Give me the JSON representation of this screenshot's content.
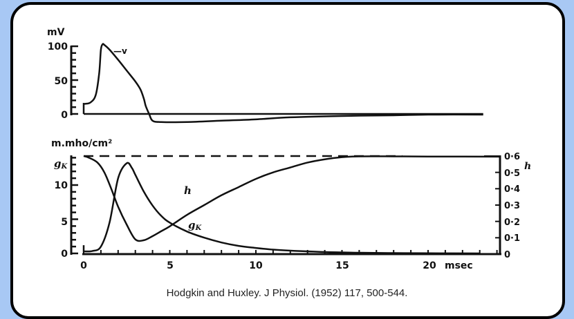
{
  "colors": {
    "background": "#a8c8f4",
    "frame_fill": "#ffffff",
    "frame_border": "#000000",
    "ink": "#111111",
    "caption": "#222222"
  },
  "caption": "Hodgkin and Huxley. J Physiol. (1952) 117, 500-544.",
  "chart_data": [
    {
      "type": "line",
      "title": "",
      "ylabel": "mV",
      "xlabel": "",
      "ylim": [
        0,
        100
      ],
      "xlim": [
        0,
        23.5
      ],
      "yticks": [
        0,
        50,
        100
      ],
      "grid": false,
      "annotations": [
        {
          "text": "—v",
          "x": 2.0,
          "y": 92
        }
      ],
      "series": [
        {
          "name": "v",
          "x": [
            0,
            0.1,
            0.4,
            0.7,
            0.9,
            1.0,
            1.1,
            1.2,
            1.5,
            2.0,
            2.5,
            3.0,
            3.3,
            3.5,
            3.6,
            3.8,
            4.0,
            4.5,
            6,
            8,
            10,
            12,
            15,
            18,
            20,
            23.2
          ],
          "y": [
            15,
            15,
            17,
            28,
            60,
            95,
            103,
            102,
            95,
            80,
            64,
            48,
            36,
            22,
            12,
            0,
            -10,
            -12,
            -12,
            -10,
            -8,
            -5,
            -3,
            -2,
            -1,
            -1
          ]
        },
        {
          "name": "baseline",
          "x": [
            0,
            23.2
          ],
          "y": [
            0,
            0
          ]
        }
      ]
    },
    {
      "type": "line",
      "title": "",
      "ylabel": "m.mho/cm²",
      "ylabel_left_series": "gK",
      "ylabel_right": "h",
      "xlabel": "msec",
      "xlim": [
        0,
        24.2
      ],
      "ylim": [
        0,
        14.5
      ],
      "ylim_right": [
        0,
        0.6
      ],
      "xticks": [
        0,
        5,
        10,
        15,
        20
      ],
      "yticks": [
        0,
        5,
        10
      ],
      "yticks_right": [
        0,
        0.1,
        0.2,
        0.3,
        0.4,
        0.5,
        0.6
      ],
      "yticks_right_labels": [
        "0",
        "0·1",
        "0·2",
        "0·3",
        "0·4",
        "0·5",
        "0·6"
      ],
      "grid": false,
      "annotations": [
        {
          "text": "h",
          "x": 6.0,
          "y_right": 0.38
        },
        {
          "text": "gK",
          "x": 6.1,
          "y": 4.2
        }
      ],
      "series": [
        {
          "name": "gK",
          "axis": "left",
          "x": [
            0,
            0.5,
            1.0,
            1.5,
            2.0,
            2.5,
            2.8,
            3.0,
            3.5,
            4.0,
            4.5,
            5.0,
            6,
            7,
            8,
            9,
            10,
            11,
            12,
            14,
            16,
            18,
            20,
            23
          ],
          "y": [
            0.3,
            0.35,
            1.0,
            4.5,
            11.0,
            13.2,
            12.5,
            11.5,
            9.0,
            7.0,
            5.5,
            4.5,
            3.2,
            2.3,
            1.6,
            1.1,
            0.8,
            0.55,
            0.4,
            0.2,
            0.1,
            0.05,
            0.02,
            0.0
          ]
        },
        {
          "name": "h",
          "axis": "right",
          "x": [
            0,
            0.3,
            0.8,
            1.2,
            1.6,
            2.0,
            2.5,
            3.0,
            3.5,
            4.0,
            4.5,
            5.0,
            6,
            7,
            8,
            9,
            10,
            11,
            12,
            13,
            14,
            15,
            16,
            18,
            20,
            24.2
          ],
          "y": [
            0.6,
            0.59,
            0.56,
            0.5,
            0.4,
            0.29,
            0.18,
            0.09,
            0.085,
            0.11,
            0.14,
            0.17,
            0.24,
            0.3,
            0.36,
            0.41,
            0.46,
            0.5,
            0.53,
            0.56,
            0.58,
            0.593,
            0.598,
            0.598,
            0.597,
            0.596
          ]
        },
        {
          "name": "h_resting (dashed)",
          "axis": "right",
          "style": "dashed",
          "x": [
            0,
            18.5
          ],
          "y": [
            0.6,
            0.6
          ]
        }
      ]
    }
  ],
  "upper_axis": {
    "unit_label": "mV",
    "tick_labels": [
      "100",
      "50",
      "0"
    ],
    "trace_label": "—v"
  },
  "lower_axis": {
    "unit_label": "m.mho/cm²",
    "left_series_label": "g",
    "left_series_sub": "K",
    "left_tick_labels": [
      "10",
      "5",
      "0"
    ],
    "right_series_label": "h",
    "right_tick_labels": [
      "0·6",
      "0·5",
      "0·4",
      "0·3",
      "0·2",
      "0·1",
      "0"
    ],
    "x_tick_labels": [
      "0",
      "5",
      "10",
      "15",
      "20"
    ],
    "x_unit": "msec",
    "curve_label_h": "h",
    "curve_label_gk": "g",
    "curve_label_gk_sub": "K"
  }
}
